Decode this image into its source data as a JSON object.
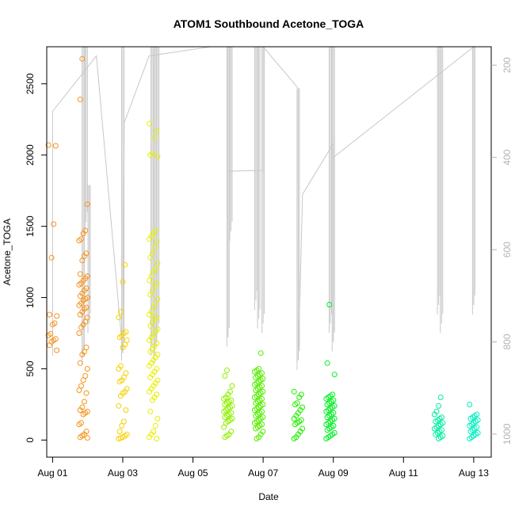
{
  "chart_data": {
    "type": "scatter",
    "title": "ATOM1 Southbound Acetone_TOGA",
    "xlabel": "Date",
    "ylabel": "Acetone_TOGA",
    "xlim": [
      "2016-07-31T20:00",
      "2016-08-13T12:00"
    ],
    "ylim": [
      -120,
      2760
    ],
    "xticks": [
      {
        "date": "2016-08-01T00:00",
        "label": "Aug 01"
      },
      {
        "date": "2016-08-03T00:00",
        "label": "Aug 03"
      },
      {
        "date": "2016-08-05T00:00",
        "label": "Aug 05"
      },
      {
        "date": "2016-08-07T00:00",
        "label": "Aug 07"
      },
      {
        "date": "2016-08-09T00:00",
        "label": "Aug 09"
      },
      {
        "date": "2016-08-11T00:00",
        "label": "Aug 11"
      },
      {
        "date": "2016-08-13T00:00",
        "label": "Aug 13"
      }
    ],
    "yticks": [
      0,
      500,
      1000,
      1500,
      2000,
      2500
    ],
    "right_axis": {
      "ylim": [
        1050,
        160
      ],
      "ticks": [
        200,
        400,
        600,
        800,
        1000
      ],
      "color": "#b3b3b3"
    },
    "point_groups": [
      {
        "date": "2016-08-01T00:00",
        "color": "#f7941d",
        "values": [
          2070,
          2065,
          1515,
          1280,
          880,
          870,
          820,
          810,
          745,
          735,
          710,
          700,
          690,
          665,
          630
        ]
      },
      {
        "date": "2016-08-01T21:00",
        "color": "#f7941d",
        "values": [
          2675,
          2390,
          1655,
          1470,
          1450,
          1410,
          1400,
          1310,
          1290,
          1260,
          1165,
          1150,
          1135,
          1120,
          1100,
          1090,
          1065,
          1050,
          1030,
          1010,
          1000,
          990,
          980,
          960,
          945,
          930,
          920,
          900,
          880,
          860,
          830,
          810,
          790,
          750,
          650,
          620,
          600,
          540,
          500,
          450,
          420,
          380,
          350,
          330,
          270,
          230,
          210,
          200,
          190,
          180,
          120,
          110,
          60,
          40,
          30,
          20,
          15
        ]
      },
      {
        "date": "2016-08-03T00:00",
        "color": "#f5d100",
        "values": [
          1230,
          1110,
          900,
          860,
          760,
          750,
          730,
          720,
          700,
          670,
          650,
          520,
          500,
          470,
          440,
          420,
          410,
          360,
          340,
          330,
          310,
          240,
          210,
          130,
          100,
          60,
          40,
          30,
          20,
          15,
          10
        ]
      },
      {
        "date": "2016-08-03T21:00",
        "color": "#e8f000",
        "values": [
          2220,
          2170,
          2120,
          2010,
          2000,
          1990,
          1470,
          1450,
          1430,
          1410,
          1390,
          1350,
          1310,
          1280,
          1240,
          1200,
          1180,
          1150,
          1120,
          1100,
          1080,
          1050,
          1020,
          990,
          960,
          930,
          900,
          880,
          860,
          850,
          830,
          800,
          780,
          760,
          740,
          720,
          700,
          680,
          660,
          640,
          620,
          600,
          580,
          560,
          540,
          520,
          500,
          480,
          460,
          440,
          420,
          400,
          380,
          360,
          340,
          320,
          300,
          280,
          200,
          150,
          100,
          60,
          40,
          20,
          10
        ]
      },
      {
        "date": "2016-08-06T00:00",
        "color": "#8ff000",
        "values": [
          490,
          450,
          380,
          340,
          320,
          300,
          290,
          280,
          270,
          260,
          250,
          240,
          230,
          220,
          210,
          200,
          190,
          180,
          170,
          160,
          150,
          140,
          130,
          120,
          90,
          60,
          40,
          30,
          20
        ]
      },
      {
        "date": "2016-08-06T21:00",
        "color": "#55ee00",
        "values": [
          610,
          500,
          490,
          480,
          470,
          460,
          450,
          440,
          430,
          420,
          410,
          400,
          390,
          380,
          370,
          360,
          350,
          340,
          330,
          320,
          310,
          300,
          290,
          280,
          270,
          260,
          250,
          240,
          230,
          220,
          210,
          200,
          190,
          180,
          170,
          160,
          150,
          140,
          130,
          120,
          110,
          100,
          90,
          80,
          60,
          40,
          20,
          10
        ]
      },
      {
        "date": "2016-08-08T00:00",
        "color": "#22ee00",
        "values": [
          340,
          320,
          300,
          260,
          250,
          230,
          210,
          190,
          170,
          150,
          140,
          130,
          120,
          110,
          80,
          60,
          40,
          20,
          10
        ]
      },
      {
        "date": "2016-08-08T22:00",
        "color": "#00ee22",
        "values": [
          950,
          540,
          460,
          320,
          310,
          300,
          290,
          280,
          270,
          260,
          250,
          240,
          230,
          220,
          210,
          200,
          190,
          180,
          170,
          160,
          150,
          140,
          130,
          120,
          110,
          100,
          90,
          80,
          70,
          50,
          40,
          30,
          20,
          10
        ]
      },
      {
        "date": "2016-08-12T00:00",
        "color": "#00eea0",
        "values": [
          300,
          240,
          200,
          180,
          160,
          150,
          140,
          130,
          120,
          110,
          100,
          90,
          80,
          70,
          60,
          50,
          40,
          30,
          20,
          10
        ]
      },
      {
        "date": "2016-08-13T00:00",
        "color": "#00eec0",
        "values": [
          250,
          180,
          170,
          160,
          150,
          140,
          130,
          120,
          110,
          100,
          90,
          80,
          70,
          60,
          50,
          40,
          30,
          20,
          10
        ]
      }
    ],
    "altitude_trace": {
      "color": "#c8c8c8",
      "points": [
        [
          "2016-08-01T00:00",
          830
        ],
        [
          "2016-08-01T00:00",
          300
        ],
        [
          "2016-08-02T06:00",
          180
        ],
        [
          "2016-08-03T00:00",
          825
        ],
        [
          "2016-08-03T01:00",
          325
        ],
        [
          "2016-08-03T18:00",
          180
        ],
        [
          "2016-08-05T12:00",
          150
        ],
        [
          "2016-08-06T00:00",
          150
        ],
        [
          "2016-08-06T00:00",
          790
        ],
        [
          "2016-08-06T00:00",
          430
        ],
        [
          "2016-08-07T00:00",
          428
        ],
        [
          "2016-08-07T00:00",
          150
        ],
        [
          "2016-08-08T00:00",
          250
        ],
        [
          "2016-08-08T00:00",
          840
        ],
        [
          "2016-08-08T03:00",
          480
        ],
        [
          "2016-08-09T00:00",
          370
        ],
        [
          "2016-08-09T00:00",
          800
        ],
        [
          "2016-08-09T00:00",
          400
        ],
        [
          "2016-08-13T00:00",
          160
        ],
        [
          "2016-08-13T00:00",
          720
        ]
      ],
      "spikes": [
        {
          "date": "2016-08-01T21:00",
          "top": 150,
          "bottom": 830
        },
        {
          "date": "2016-08-01T23:00",
          "top": 160,
          "bottom": 540
        },
        {
          "date": "2016-08-02T01:00",
          "top": 460,
          "bottom": 760
        },
        {
          "date": "2016-08-03T00:00",
          "top": 150,
          "bottom": 820
        },
        {
          "date": "2016-08-03T20:00",
          "top": 150,
          "bottom": 810
        },
        {
          "date": "2016-08-03T22:00",
          "top": 150,
          "bottom": 830
        },
        {
          "date": "2016-08-04T00:00",
          "top": 150,
          "bottom": 780
        },
        {
          "date": "2016-08-06T00:00",
          "top": 150,
          "bottom": 790
        },
        {
          "date": "2016-08-06T02:00",
          "top": 150,
          "bottom": 560
        },
        {
          "date": "2016-08-06T19:00",
          "top": 150,
          "bottom": 710
        },
        {
          "date": "2016-08-06T21:00",
          "top": 150,
          "bottom": 750
        },
        {
          "date": "2016-08-07T00:00",
          "top": 150,
          "bottom": 760
        },
        {
          "date": "2016-08-08T00:00",
          "top": 250,
          "bottom": 840
        },
        {
          "date": "2016-08-08T22:00",
          "top": 150,
          "bottom": 760
        },
        {
          "date": "2016-08-09T00:00",
          "top": 150,
          "bottom": 800
        },
        {
          "date": "2016-08-12T00:00",
          "top": 150,
          "bottom": 720
        },
        {
          "date": "2016-08-12T02:00",
          "top": 150,
          "bottom": 760
        },
        {
          "date": "2016-08-13T00:00",
          "top": 150,
          "bottom": 720
        }
      ]
    }
  }
}
